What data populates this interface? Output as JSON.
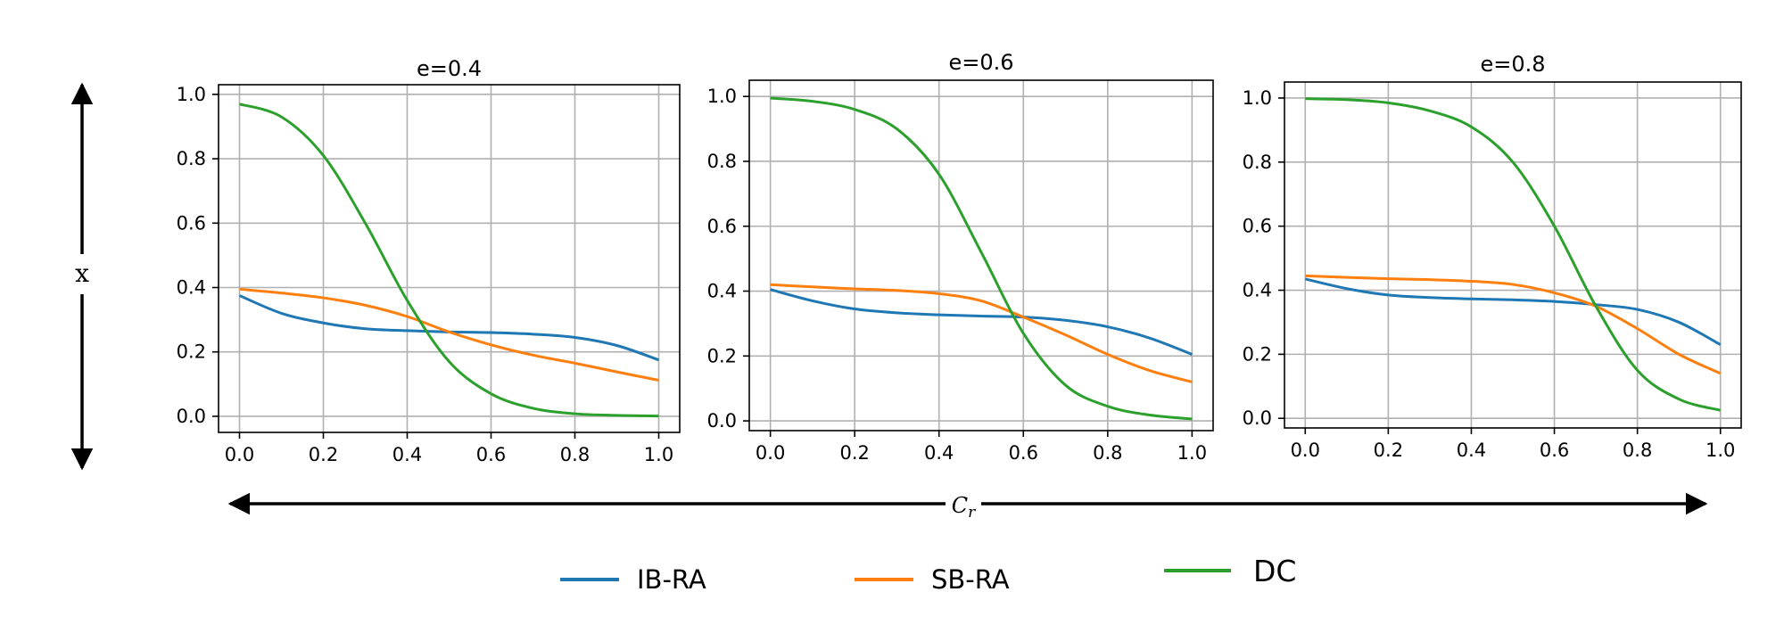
{
  "colors": {
    "ib_ra": "#1f77b4",
    "sb_ra": "#ff7f0e",
    "dc": "#2ca02c",
    "grid": "#b0b0b0",
    "axes": "#000000"
  },
  "figure": {
    "y_arrow_label": "x",
    "x_arrow_label": "C_r",
    "legend": [
      {
        "label": "IB-RA",
        "color": "#1f77b4"
      },
      {
        "label": "SB-RA",
        "color": "#ff7f0e"
      },
      {
        "label": "DC",
        "color": "#2ca02c"
      }
    ]
  },
  "chart_data": [
    {
      "type": "line",
      "title": "e=0.4",
      "xlim": [
        -0.05,
        1.05
      ],
      "ylim": [
        -0.05,
        1.03
      ],
      "xticks": [
        "0.0",
        "0.2",
        "0.4",
        "0.6",
        "0.8",
        "1.0"
      ],
      "yticks": [
        "0.0",
        "0.2",
        "0.4",
        "0.6",
        "0.8",
        "1.0"
      ],
      "grid": true,
      "x": [
        0.0,
        0.1,
        0.2,
        0.3,
        0.4,
        0.5,
        0.6,
        0.7,
        0.8,
        0.9,
        1.0
      ],
      "series": [
        {
          "name": "IB-RA",
          "color": "#1f77b4",
          "values": [
            0.375,
            0.32,
            0.29,
            0.272,
            0.266,
            0.262,
            0.26,
            0.255,
            0.245,
            0.22,
            0.175
          ]
        },
        {
          "name": "SB-RA",
          "color": "#ff7f0e",
          "values": [
            0.395,
            0.383,
            0.368,
            0.345,
            0.31,
            0.262,
            0.222,
            0.19,
            0.165,
            0.138,
            0.112
          ]
        },
        {
          "name": "DC",
          "color": "#2ca02c",
          "values": [
            0.97,
            0.93,
            0.81,
            0.6,
            0.36,
            0.17,
            0.07,
            0.025,
            0.008,
            0.003,
            0.001
          ]
        }
      ]
    },
    {
      "type": "line",
      "title": "e=0.6",
      "xlim": [
        -0.05,
        1.05
      ],
      "ylim": [
        -0.03,
        1.05
      ],
      "xticks": [
        "0.0",
        "0.2",
        "0.4",
        "0.6",
        "0.8",
        "1.0"
      ],
      "yticks": [
        "0.0",
        "0.2",
        "0.4",
        "0.6",
        "0.8",
        "1.0"
      ],
      "grid": true,
      "x": [
        0.0,
        0.1,
        0.2,
        0.3,
        0.4,
        0.5,
        0.6,
        0.7,
        0.8,
        0.9,
        1.0
      ],
      "series": [
        {
          "name": "IB-RA",
          "color": "#1f77b4",
          "values": [
            0.405,
            0.37,
            0.345,
            0.333,
            0.327,
            0.323,
            0.32,
            0.31,
            0.29,
            0.255,
            0.205
          ]
        },
        {
          "name": "SB-RA",
          "color": "#ff7f0e",
          "values": [
            0.42,
            0.413,
            0.407,
            0.402,
            0.392,
            0.37,
            0.32,
            0.265,
            0.205,
            0.155,
            0.12
          ]
        },
        {
          "name": "DC",
          "color": "#2ca02c",
          "values": [
            0.995,
            0.985,
            0.96,
            0.9,
            0.76,
            0.52,
            0.27,
            0.11,
            0.045,
            0.018,
            0.006
          ]
        }
      ]
    },
    {
      "type": "line",
      "title": "e=0.8",
      "xlim": [
        -0.05,
        1.05
      ],
      "ylim": [
        -0.03,
        1.05
      ],
      "xticks": [
        "0.0",
        "0.2",
        "0.4",
        "0.6",
        "0.8",
        "1.0"
      ],
      "yticks": [
        "0.0",
        "0.2",
        "0.4",
        "0.6",
        "0.8",
        "1.0"
      ],
      "grid": true,
      "x": [
        0.0,
        0.1,
        0.2,
        0.3,
        0.4,
        0.5,
        0.6,
        0.7,
        0.8,
        0.9,
        1.0
      ],
      "series": [
        {
          "name": "IB-RA",
          "color": "#1f77b4",
          "values": [
            0.435,
            0.405,
            0.385,
            0.377,
            0.373,
            0.37,
            0.365,
            0.355,
            0.34,
            0.3,
            0.23
          ]
        },
        {
          "name": "SB-RA",
          "color": "#ff7f0e",
          "values": [
            0.445,
            0.44,
            0.436,
            0.433,
            0.428,
            0.418,
            0.392,
            0.35,
            0.28,
            0.2,
            0.14
          ]
        },
        {
          "name": "DC",
          "color": "#2ca02c",
          "values": [
            0.998,
            0.995,
            0.985,
            0.96,
            0.91,
            0.8,
            0.6,
            0.35,
            0.15,
            0.06,
            0.025
          ]
        }
      ]
    }
  ]
}
